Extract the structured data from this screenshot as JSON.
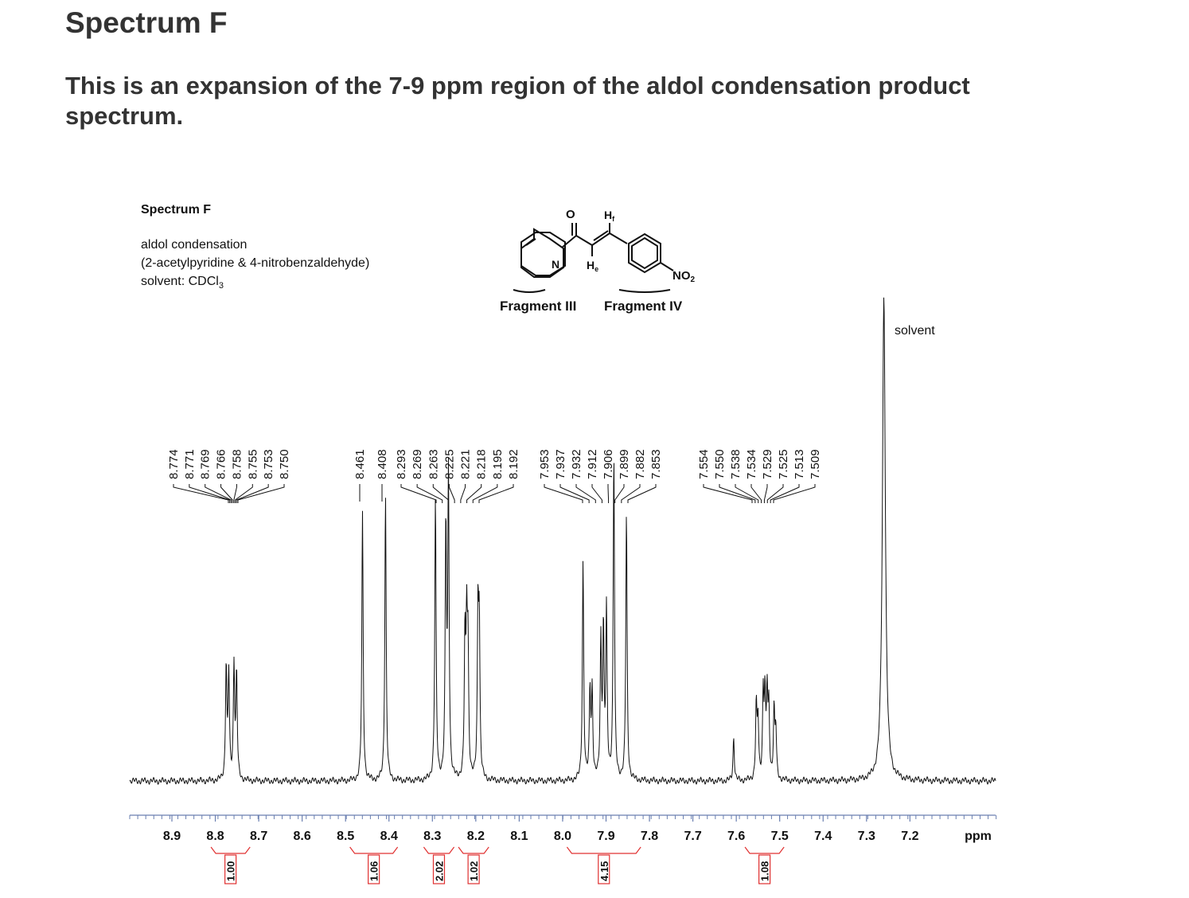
{
  "page": {
    "heading": "Spectrum F",
    "intro": "This is an expansion of the 7-9 ppm region of the aldol condensation product spectrum."
  },
  "figure": {
    "title": "Spectrum F",
    "reaction": "aldol condensation",
    "reagents": "(2-acetylpyridine & 4-nitrobenzaldehyde)",
    "solvent_prefix": "solvent: CDCl",
    "solvent_sub": "3",
    "structure": {
      "carbonyl_o": "O",
      "pyridine_n": "N",
      "h_f": "H",
      "h_f_sub": "f",
      "h_e": "H",
      "h_e_sub": "e",
      "nitro": "NO",
      "nitro_sub": "2"
    },
    "fragment_left": "Fragment III",
    "fragment_right": "Fragment IV",
    "solvent_peak_label": "solvent"
  },
  "chart_data": {
    "type": "line",
    "xlabel": "ppm",
    "xlim": [
      8.98,
      7.0
    ],
    "x_reversed": true,
    "xticks": [
      "8.9",
      "8.8",
      "8.7",
      "8.6",
      "8.5",
      "8.4",
      "8.3",
      "8.2",
      "8.1",
      "8.0",
      "7.9",
      "7.8",
      "7.7",
      "7.6",
      "7.5",
      "7.4",
      "7.3",
      "7.2"
    ],
    "grid": false,
    "legend": "none",
    "line_color": "#111111",
    "peak_label_groups": [
      {
        "values": [
          "8.774",
          "8.771",
          "8.769",
          "8.766",
          "8.758",
          "8.755",
          "8.753",
          "8.750"
        ]
      },
      {
        "values": [
          "8.461"
        ]
      },
      {
        "values": [
          "8.408"
        ]
      },
      {
        "values": [
          "8.293",
          "8.269",
          "8.263",
          "8.225",
          "8.221",
          "8.218",
          "8.195",
          "8.192"
        ]
      },
      {
        "values": [
          "7.953",
          "7.937",
          "7.932",
          "7.912",
          "7.906",
          "7.899",
          "7.882",
          "7.853"
        ]
      },
      {
        "values": [
          "7.554",
          "7.550",
          "7.538",
          "7.534",
          "7.529",
          "7.525",
          "7.513",
          "7.509"
        ]
      }
    ],
    "peaks": [
      {
        "ppm": 8.775,
        "height": 0.235
      },
      {
        "ppm": 8.769,
        "height": 0.215
      },
      {
        "ppm": 8.757,
        "height": 0.235
      },
      {
        "ppm": 8.751,
        "height": 0.215
      },
      {
        "ppm": 8.461,
        "height": 0.55
      },
      {
        "ppm": 8.408,
        "height": 0.59
      },
      {
        "ppm": 8.293,
        "height": 0.58
      },
      {
        "ppm": 8.269,
        "height": 0.51
      },
      {
        "ppm": 8.263,
        "height": 0.62
      },
      {
        "ppm": 8.225,
        "height": 0.28
      },
      {
        "ppm": 8.221,
        "height": 0.29
      },
      {
        "ppm": 8.218,
        "height": 0.25
      },
      {
        "ppm": 8.195,
        "height": 0.33
      },
      {
        "ppm": 8.192,
        "height": 0.3
      },
      {
        "ppm": 7.953,
        "height": 0.45
      },
      {
        "ppm": 7.937,
        "height": 0.18
      },
      {
        "ppm": 7.932,
        "height": 0.18
      },
      {
        "ppm": 7.912,
        "height": 0.28
      },
      {
        "ppm": 7.906,
        "height": 0.3
      },
      {
        "ppm": 7.899,
        "height": 0.34
      },
      {
        "ppm": 7.882,
        "height": 0.67
      },
      {
        "ppm": 7.853,
        "height": 0.55
      },
      {
        "ppm": 7.606,
        "height": 0.09
      },
      {
        "ppm": 7.554,
        "height": 0.15
      },
      {
        "ppm": 7.55,
        "height": 0.12
      },
      {
        "ppm": 7.538,
        "height": 0.17
      },
      {
        "ppm": 7.534,
        "height": 0.16
      },
      {
        "ppm": 7.529,
        "height": 0.17
      },
      {
        "ppm": 7.525,
        "height": 0.14
      },
      {
        "ppm": 7.513,
        "height": 0.14
      },
      {
        "ppm": 7.509,
        "height": 0.1
      },
      {
        "ppm": 7.26,
        "height": 1.0
      }
    ],
    "integrals": [
      {
        "from": 8.81,
        "to": 8.72,
        "value": "1.00"
      },
      {
        "from": 8.49,
        "to": 8.38,
        "value": "1.06"
      },
      {
        "from": 8.32,
        "to": 8.25,
        "value": "2.02"
      },
      {
        "from": 8.24,
        "to": 8.17,
        "value": "1.02"
      },
      {
        "from": 7.99,
        "to": 7.82,
        "value": "4.15"
      },
      {
        "from": 7.58,
        "to": 7.49,
        "value": "1.08"
      }
    ]
  }
}
